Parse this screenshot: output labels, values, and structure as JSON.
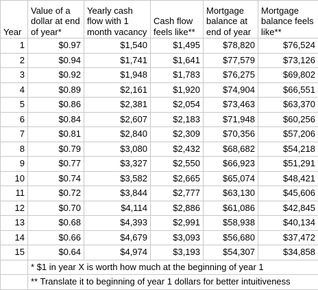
{
  "table": {
    "headers": [
      {
        "lines": [
          "Year"
        ]
      },
      {
        "lines": [
          "Value of a",
          "dollar at end",
          "of year*"
        ]
      },
      {
        "lines": [
          "Yearly cash",
          "flow with 1",
          "month vacancy"
        ]
      },
      {
        "lines": [
          "Cash flow",
          "feels like**"
        ]
      },
      {
        "lines": [
          "Mortgage",
          "balance at",
          "end of year"
        ]
      },
      {
        "lines": [
          "Mortgage",
          "balance feels",
          "like**"
        ]
      }
    ],
    "rows": [
      [
        "1",
        "$0.97",
        "$1,540",
        "$1,495",
        "$78,820",
        "$76,524"
      ],
      [
        "2",
        "$0.94",
        "$1,741",
        "$1,641",
        "$77,579",
        "$73,126"
      ],
      [
        "3",
        "$0.92",
        "$1,948",
        "$1,783",
        "$76,275",
        "$69,802"
      ],
      [
        "4",
        "$0.89",
        "$2,161",
        "$1,920",
        "$74,904",
        "$66,551"
      ],
      [
        "5",
        "$0.86",
        "$2,381",
        "$2,054",
        "$73,463",
        "$63,370"
      ],
      [
        "6",
        "$0.84",
        "$2,607",
        "$2,183",
        "$71,948",
        "$60,256"
      ],
      [
        "7",
        "$0.81",
        "$2,840",
        "$2,309",
        "$70,356",
        "$57,206"
      ],
      [
        "8",
        "$0.79",
        "$3,080",
        "$2,432",
        "$68,682",
        "$54,218"
      ],
      [
        "9",
        "$0.77",
        "$3,327",
        "$2,550",
        "$66,923",
        "$51,291"
      ],
      [
        "10",
        "$0.74",
        "$3,582",
        "$2,665",
        "$65,074",
        "$48,421"
      ],
      [
        "11",
        "$0.72",
        "$3,844",
        "$2,777",
        "$63,130",
        "$45,606"
      ],
      [
        "12",
        "$0.70",
        "$4,114",
        "$2,886",
        "$61,086",
        "$42,845"
      ],
      [
        "13",
        "$0.68",
        "$4,393",
        "$2,991",
        "$58,938",
        "$40,134"
      ],
      [
        "14",
        "$0.66",
        "$4,679",
        "$3,093",
        "$56,680",
        "$37,472"
      ],
      [
        "15",
        "$0.64",
        "$4,974",
        "$3,193",
        "$54,307",
        "$34,858"
      ]
    ],
    "notes": [
      "* $1 in year X is worth how much at the beginning of year 1",
      "** Translate it to beginning of year 1 dollars for better intuitiveness"
    ]
  }
}
